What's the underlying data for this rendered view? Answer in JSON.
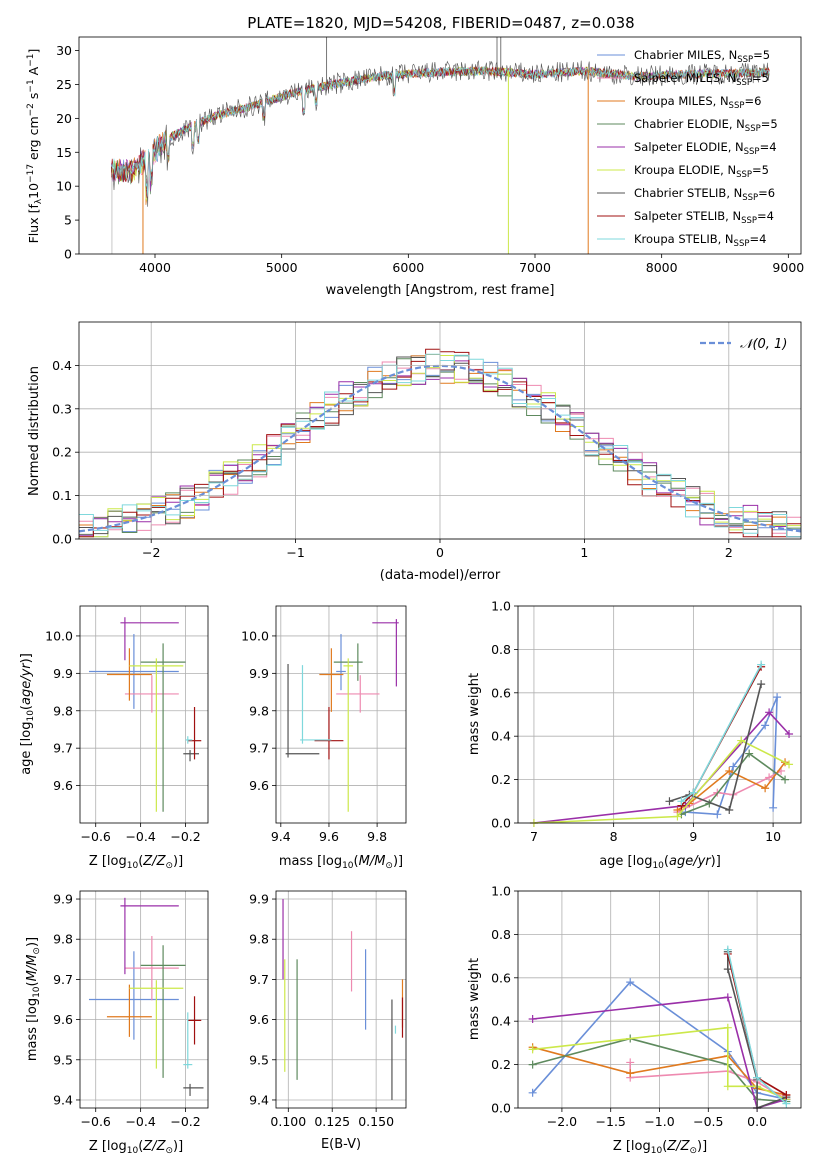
{
  "title": "PLATE=1820, MJD=54208, FIBERID=0487, z=0.038",
  "colors": {
    "chabrier_miles": "#6a8fd8",
    "salpeter_miles": "#ee8ab0",
    "kroupa_miles": "#e07a1f",
    "chabrier_elodie": "#5e8a5e",
    "salpeter_elodie": "#9a2fa8",
    "kroupa_elodie": "#cce84a",
    "chabrier_stelib": "#555555",
    "salpeter_stelib": "#a01010",
    "kroupa_stelib": "#7fd8dc",
    "gaussian": "#6a8fd8"
  },
  "chart_data": [
    {
      "id": "spectrum",
      "type": "line",
      "xlabel": "wavelength [Angstrom, rest frame]",
      "ylabel": "Flux [fλ10⁻¹⁷ erg cm⁻² s⁻¹ A⁻¹]",
      "xlim": [
        3400,
        9100
      ],
      "ylim": [
        0,
        32
      ],
      "xticks": [
        "4000",
        "5000",
        "6000",
        "7000",
        "8000",
        "9000"
      ],
      "yticks": [
        "0",
        "5",
        "10",
        "15",
        "20",
        "25",
        "30"
      ],
      "legend_position": "top-right",
      "continuum": {
        "x": [
          3650,
          3800,
          3950,
          4100,
          4300,
          4500,
          4800,
          5100,
          5400,
          5800,
          6200,
          6600,
          7000,
          7400,
          7800,
          8200,
          8600,
          8850
        ],
        "y": [
          12.5,
          12,
          14.5,
          17,
          19,
          20.5,
          22,
          23.8,
          25,
          26.3,
          26.8,
          27,
          26.5,
          27,
          26.2,
          26.5,
          26.7,
          26.8
        ]
      },
      "series": [
        {
          "name": "Chabrier MILES, N_SSP=5",
          "label_main": "Chabrier MILES, N",
          "label_sub": "SSP",
          "label_end": "=5",
          "color": "#6a8fd8"
        },
        {
          "name": "Salpeter MILES, N_SSP=5",
          "label_main": "Salpeter MILES, N",
          "label_sub": "SSP",
          "label_end": "=5",
          "color": "#ee8ab0"
        },
        {
          "name": "Kroupa MILES, N_SSP=6",
          "label_main": "Kroupa MILES, N",
          "label_sub": "SSP",
          "label_end": "=6",
          "color": "#e07a1f"
        },
        {
          "name": "Chabrier ELODIE, N_SSP=5",
          "label_main": "Chabrier ELODIE, N",
          "label_sub": "SSP",
          "label_end": "=5",
          "color": "#5e8a5e"
        },
        {
          "name": "Salpeter ELODIE, N_SSP=4",
          "label_main": "Salpeter ELODIE, N",
          "label_sub": "SSP",
          "label_end": "=4",
          "color": "#9a2fa8"
        },
        {
          "name": "Kroupa ELODIE, N_SSP=5",
          "label_main": "Kroupa ELODIE, N",
          "label_sub": "SSP",
          "label_end": "=5",
          "color": "#cce84a"
        },
        {
          "name": "Chabrier STELIB, N_SSP=6",
          "label_main": "Chabrier STELIB, N",
          "label_sub": "SSP",
          "label_end": "=6",
          "color": "#555555"
        },
        {
          "name": "Salpeter STELIB, N_SSP=4",
          "label_main": "Salpeter STELIB, N",
          "label_sub": "SSP",
          "label_end": "=4",
          "color": "#a01010"
        },
        {
          "name": "Kroupa STELIB, N_SSP=4",
          "label_main": "Kroupa STELIB, N",
          "label_sub": "SSP",
          "label_end": "=4",
          "color": "#7fd8dc"
        }
      ]
    },
    {
      "id": "residuals",
      "type": "step",
      "xlabel": "(data-model)/error",
      "ylabel": "Normed distribution",
      "xlim": [
        -2.5,
        2.5
      ],
      "ylim": [
        0,
        0.5
      ],
      "xticks": [
        "−2",
        "−1",
        "0",
        "1",
        "2"
      ],
      "yticks": [
        "0.0",
        "0.1",
        "0.2",
        "0.3",
        "0.4"
      ],
      "legend": "𝒩(0, 1)",
      "legend_position": "top-right",
      "bin_width": 0.1
    },
    {
      "id": "age_vs_Z",
      "type": "errorbar",
      "xlabel": "Z [log₁₀(Z/Z⊙)]",
      "ylabel": "age  [log₁₀(age/yr)]",
      "xlim": [
        -0.67,
        -0.1
      ],
      "ylim": [
        9.5,
        10.08
      ],
      "xticks": [
        "−0.6",
        "−0.4",
        "−0.2"
      ],
      "yticks": [
        "9.6",
        "9.7",
        "9.8",
        "9.9",
        "10.0"
      ],
      "points": [
        {
          "c": "#6a8fd8",
          "x": -0.43,
          "xe": [
            0.2,
            0.2
          ],
          "y": 9.905,
          "ye": [
            0.1,
            0.1
          ]
        },
        {
          "c": "#ee8ab0",
          "x": -0.35,
          "xe": [
            0.12,
            0.12
          ],
          "y": 9.845,
          "ye": [
            0.05,
            0.05
          ]
        },
        {
          "c": "#e07a1f",
          "x": -0.45,
          "xe": [
            0.1,
            0.1
          ],
          "y": 9.897,
          "ye": [
            0.07,
            0.07
          ]
        },
        {
          "c": "#5e8a5e",
          "x": -0.3,
          "xe": [
            0.1,
            0.1
          ],
          "y": 9.93,
          "ye": [
            0.4,
            0.05
          ]
        },
        {
          "c": "#9a2fa8",
          "x": -0.47,
          "xe": [
            0.02,
            0.24
          ],
          "y": 10.035,
          "ye": [
            0.1,
            0.015
          ]
        },
        {
          "c": "#cce84a",
          "x": -0.33,
          "xe": [
            0.12,
            0.12
          ],
          "y": 9.92,
          "ye": [
            0.39,
            0.02
          ]
        },
        {
          "c": "#555555",
          "x": -0.18,
          "xe": [
            0.03,
            0.04
          ],
          "y": 9.685,
          "ye": [
            0.02,
            0.01
          ]
        },
        {
          "c": "#a01010",
          "x": -0.16,
          "xe": [
            0.03,
            0.03
          ],
          "y": 9.72,
          "ye": [
            0.05,
            0.09
          ]
        },
        {
          "c": "#7fd8dc",
          "x": -0.19,
          "xe": [
            0.01,
            0.02
          ],
          "y": 9.722,
          "ye": [
            0.01,
            0.01
          ]
        }
      ]
    },
    {
      "id": "age_vs_mass",
      "type": "errorbar",
      "xlabel": "mass [log₁₀(M/M⊙)]",
      "xlim": [
        9.38,
        9.92
      ],
      "ylim": [
        9.5,
        10.08
      ],
      "xticks": [
        "9.4",
        "9.6",
        "9.8"
      ],
      "yticks": [
        "9.6",
        "9.7",
        "9.8",
        "9.9",
        "10.0"
      ],
      "points": [
        {
          "c": "#6a8fd8",
          "x": 9.65,
          "xe": [
            0.02,
            0.02
          ],
          "y": 9.905,
          "ye": [
            0.05,
            0.1
          ]
        },
        {
          "c": "#ee8ab0",
          "x": 9.73,
          "xe": [
            0.1,
            0.08
          ],
          "y": 9.845,
          "ye": [
            0.05,
            0.05
          ]
        },
        {
          "c": "#e07a1f",
          "x": 9.61,
          "xe": [
            0.05,
            0.05
          ],
          "y": 9.897,
          "ye": [
            0.1,
            0.07
          ]
        },
        {
          "c": "#5e8a5e",
          "x": 9.72,
          "xe": [
            0.1,
            0.02
          ],
          "y": 9.93,
          "ye": [
            0.05,
            0.05
          ]
        },
        {
          "c": "#9a2fa8",
          "x": 9.88,
          "xe": [
            0.1,
            0.01
          ],
          "y": 10.035,
          "ye": [
            0.17,
            0.01
          ]
        },
        {
          "c": "#cce84a",
          "x": 9.68,
          "xe": [
            0.02,
            0.02
          ],
          "y": 9.92,
          "ye": [
            0.39,
            0.02
          ]
        },
        {
          "c": "#555555",
          "x": 9.43,
          "xe": [
            0.01,
            0.13
          ],
          "y": 9.685,
          "ye": [
            0.01,
            0.24
          ]
        },
        {
          "c": "#a01010",
          "x": 9.6,
          "xe": [
            0.06,
            0.06
          ],
          "y": 9.72,
          "ye": [
            0.05,
            0.09
          ]
        },
        {
          "c": "#7fd8dc",
          "x": 9.49,
          "xe": [
            0.01,
            0.12
          ],
          "y": 9.722,
          "ye": [
            0.01,
            0.2
          ]
        }
      ]
    },
    {
      "id": "weight_vs_age",
      "type": "line",
      "xlabel": "age  [log₁₀(age/yr)]",
      "ylabel": "mass weight",
      "xlim": [
        6.8,
        10.35
      ],
      "ylim": [
        0,
        1
      ],
      "xticks": [
        "7",
        "8",
        "9",
        "10"
      ],
      "yticks": [
        "0.0",
        "0.2",
        "0.4",
        "0.6",
        "0.8",
        "1.0"
      ],
      "series": [
        {
          "c": "#6a8fd8",
          "x": [
            8.9,
            9.3,
            9.5,
            9.9,
            10.05,
            10.0
          ],
          "y": [
            0.05,
            0.04,
            0.26,
            0.45,
            0.58,
            0.07
          ]
        },
        {
          "c": "#ee8ab0",
          "x": [
            8.8,
            9.3,
            9.5,
            9.95,
            10.1
          ],
          "y": [
            0.05,
            0.14,
            0.13,
            0.21,
            0.24
          ]
        },
        {
          "c": "#e07a1f",
          "x": [
            8.8,
            8.95,
            9.45,
            9.9,
            10.15
          ],
          "y": [
            0.06,
            0.09,
            0.24,
            0.16,
            0.28
          ]
        },
        {
          "c": "#5e8a5e",
          "x": [
            8.85,
            9.2,
            9.7,
            10.15
          ],
          "y": [
            0.04,
            0.09,
            0.32,
            0.2
          ]
        },
        {
          "c": "#9a2fa8",
          "x": [
            7.0,
            8.9,
            9.95,
            10.2
          ],
          "y": [
            0.0,
            0.08,
            0.51,
            0.41
          ]
        },
        {
          "c": "#cce84a",
          "x": [
            7.0,
            8.8,
            9.6,
            10.2
          ],
          "y": [
            0.0,
            0.03,
            0.38,
            0.27
          ]
        },
        {
          "c": "#555555",
          "x": [
            8.7,
            8.95,
            9.45,
            9.85
          ],
          "y": [
            0.1,
            0.13,
            0.06,
            0.64
          ]
        },
        {
          "c": "#a01010",
          "x": [
            8.85,
            9.0,
            9.85
          ],
          "y": [
            0.08,
            0.14,
            0.72
          ]
        },
        {
          "c": "#7fd8dc",
          "x": [
            8.85,
            9.0,
            9.85
          ],
          "y": [
            0.1,
            0.14,
            0.73
          ]
        }
      ]
    },
    {
      "id": "mass_vs_Z",
      "type": "errorbar",
      "xlabel": "Z [log₁₀(Z/Z⊙)]",
      "ylabel": "mass [log₁₀(M/M⊙)]",
      "xlim": [
        -0.67,
        -0.1
      ],
      "ylim": [
        9.38,
        9.92
      ],
      "xticks": [
        "−0.6",
        "−0.4",
        "−0.2"
      ],
      "yticks": [
        "9.4",
        "9.5",
        "9.6",
        "9.7",
        "9.8",
        "9.9"
      ],
      "points": [
        {
          "c": "#6a8fd8",
          "x": -0.43,
          "xe": [
            0.2,
            0.2
          ],
          "y": 9.65,
          "ye": [
            0.1,
            0.12
          ]
        },
        {
          "c": "#ee8ab0",
          "x": -0.35,
          "xe": [
            0.12,
            0.12
          ],
          "y": 9.728,
          "ye": [
            0.08,
            0.08
          ]
        },
        {
          "c": "#e07a1f",
          "x": -0.45,
          "xe": [
            0.1,
            0.1
          ],
          "y": 9.607,
          "ye": [
            0.05,
            0.08
          ]
        },
        {
          "c": "#5e8a5e",
          "x": -0.3,
          "xe": [
            0.1,
            0.1
          ],
          "y": 9.735,
          "ye": [
            0.28,
            0.05
          ]
        },
        {
          "c": "#9a2fa8",
          "x": -0.47,
          "xe": [
            0.02,
            0.24
          ],
          "y": 9.883,
          "ye": [
            0.17,
            0.02
          ]
        },
        {
          "c": "#cce84a",
          "x": -0.33,
          "xe": [
            0.12,
            0.12
          ],
          "y": 9.678,
          "ye": [
            0.2,
            0.02
          ]
        },
        {
          "c": "#555555",
          "x": -0.18,
          "xe": [
            0.03,
            0.06
          ],
          "y": 9.43,
          "ye": [
            0.02,
            0.01
          ]
        },
        {
          "c": "#a01010",
          "x": -0.16,
          "xe": [
            0.03,
            0.03
          ],
          "y": 9.598,
          "ye": [
            0.06,
            0.06
          ]
        },
        {
          "c": "#7fd8dc",
          "x": -0.19,
          "xe": [
            0.02,
            0.02
          ],
          "y": 9.488,
          "ye": [
            0.01,
            0.13
          ]
        }
      ]
    },
    {
      "id": "mass_vs_EBV",
      "type": "errorbar",
      "xlabel": "E(B-V)",
      "xlim": [
        0.093,
        0.167
      ],
      "ylim": [
        9.38,
        9.92
      ],
      "xticks": [
        "0.100",
        "0.125",
        "0.150"
      ],
      "yticks": [
        "9.4",
        "9.5",
        "9.6",
        "9.7",
        "9.8",
        "9.9"
      ],
      "points": [
        {
          "c": "#6a8fd8",
          "x": 0.144,
          "xe": [
            0,
            0
          ],
          "y": 9.675,
          "ye": [
            0.1,
            0.1
          ]
        },
        {
          "c": "#ee8ab0",
          "x": 0.136,
          "xe": [
            0,
            0
          ],
          "y": 9.745,
          "ye": [
            0.075,
            0.075
          ]
        },
        {
          "c": "#e07a1f",
          "x": 0.165,
          "xe": [
            0,
            0
          ],
          "y": 9.64,
          "ye": [
            0.06,
            0.06
          ]
        },
        {
          "c": "#5e8a5e",
          "x": 0.105,
          "xe": [
            0,
            0
          ],
          "y": 9.6,
          "ye": [
            0.15,
            0.15
          ]
        },
        {
          "c": "#9a2fa8",
          "x": 0.097,
          "xe": [
            0,
            0
          ],
          "y": 9.8,
          "ye": [
            0.1,
            0.1
          ]
        },
        {
          "c": "#cce84a",
          "x": 0.098,
          "xe": [
            0,
            0
          ],
          "y": 9.61,
          "ye": [
            0.14,
            0.14
          ]
        },
        {
          "c": "#555555",
          "x": 0.159,
          "xe": [
            0,
            0
          ],
          "y": 9.525,
          "ye": [
            0.125,
            0.125
          ]
        },
        {
          "c": "#a01010",
          "x": 0.165,
          "xe": [
            0,
            0
          ],
          "y": 9.605,
          "ye": [
            0.05,
            0.05
          ]
        },
        {
          "c": "#7fd8dc",
          "x": 0.161,
          "xe": [
            0,
            0
          ],
          "y": 9.575,
          "ye": [
            0.01,
            0.01
          ]
        }
      ]
    },
    {
      "id": "weight_vs_Z",
      "type": "line",
      "xlabel": "Z [log₁₀(Z/Z⊙)]",
      "ylabel": "mass weight",
      "xlim": [
        -2.45,
        0.45
      ],
      "ylim": [
        0,
        1
      ],
      "xticks": [
        "−2.0",
        "−1.5",
        "−1.0",
        "−0.5",
        "0.0"
      ],
      "yticks": [
        "0.0",
        "0.2",
        "0.4",
        "0.6",
        "0.8",
        "1.0"
      ],
      "series": [
        {
          "c": "#6a8fd8",
          "x": [
            -2.3,
            -1.3,
            -0.3,
            0.0,
            0.3
          ],
          "y": [
            0.07,
            0.58,
            0.26,
            0.07,
            0.04
          ]
        },
        {
          "c": "#ee8ab0",
          "x": [
            -1.3,
            -1.3,
            -0.3,
            0.0,
            0.3
          ],
          "y": [
            0.21,
            0.14,
            0.17,
            0.12,
            0.04
          ]
        },
        {
          "c": "#e07a1f",
          "x": [
            -2.3,
            -1.3,
            -0.3,
            0.0,
            0.3
          ],
          "y": [
            0.28,
            0.16,
            0.24,
            0.09,
            0.06
          ]
        },
        {
          "c": "#5e8a5e",
          "x": [
            -2.3,
            -1.3,
            -0.3,
            0.0,
            0.3
          ],
          "y": [
            0.2,
            0.32,
            0.2,
            0.04,
            0.03
          ]
        },
        {
          "c": "#9a2fa8",
          "x": [
            -2.3,
            -0.3,
            0.0,
            0.3
          ],
          "y": [
            0.41,
            0.51,
            0.0,
            0.04
          ]
        },
        {
          "c": "#cce84a",
          "x": [
            -2.3,
            -0.3,
            -0.3,
            0.0,
            0.3
          ],
          "y": [
            0.27,
            0.37,
            0.1,
            0.1,
            0.04
          ]
        },
        {
          "c": "#555555",
          "x": [
            -0.3,
            -0.3,
            0.0,
            0.0,
            0.3
          ],
          "y": [
            0.72,
            0.64,
            0.13,
            0.0,
            0.05
          ]
        },
        {
          "c": "#a01010",
          "x": [
            -0.3,
            0.0,
            0.3
          ],
          "y": [
            0.71,
            0.14,
            0.06
          ]
        },
        {
          "c": "#7fd8dc",
          "x": [
            -0.3,
            0.0,
            0.3
          ],
          "y": [
            0.73,
            0.14,
            0.02
          ]
        }
      ]
    }
  ]
}
